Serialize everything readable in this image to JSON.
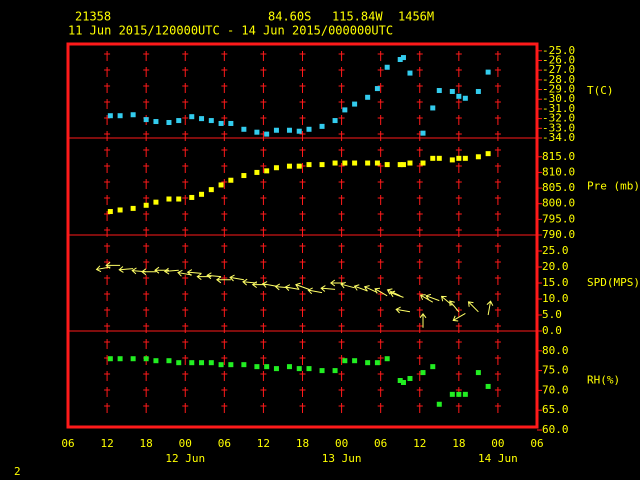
{
  "header": {
    "station": "21358",
    "latitude": "84.60S",
    "longitude": "115.84W",
    "elevation": "1456M",
    "period": "11 Jun 2015/120000UTC - 14 Jun 2015/000000UTC",
    "page": "2"
  },
  "chart_data": [
    {
      "type": "scatter",
      "ylabel": "T(C)",
      "color": "#33ccee",
      "x": [
        "2015-06-11T12:30Z",
        "2015-06-11T14:00Z",
        "2015-06-11T16:00Z",
        "2015-06-11T18:00Z",
        "2015-06-11T19:30Z",
        "2015-06-11T21:30Z",
        "2015-06-11T23:00Z",
        "2015-06-12T01:00Z",
        "2015-06-12T02:30Z",
        "2015-06-12T04:00Z",
        "2015-06-12T05:30Z",
        "2015-06-12T07:00Z",
        "2015-06-12T09:00Z",
        "2015-06-12T11:00Z",
        "2015-06-12T12:30Z",
        "2015-06-12T14:00Z",
        "2015-06-12T16:00Z",
        "2015-06-12T17:30Z",
        "2015-06-12T19:00Z",
        "2015-06-12T21:00Z",
        "2015-06-12T23:00Z",
        "2015-06-13T00:30Z",
        "2015-06-13T02:00Z",
        "2015-06-13T04:00Z",
        "2015-06-13T05:30Z",
        "2015-06-13T07:00Z",
        "2015-06-13T09:00Z",
        "2015-06-13T09:30Z",
        "2015-06-13T10:30Z",
        "2015-06-13T12:30Z",
        "2015-06-13T14:00Z",
        "2015-06-13T15:00Z",
        "2015-06-13T17:00Z",
        "2015-06-13T18:00Z",
        "2015-06-13T19:00Z",
        "2015-06-13T21:00Z",
        "2015-06-13T22:30Z"
      ],
      "values": [
        -31.7,
        -31.7,
        -31.6,
        -32.1,
        -32.3,
        -32.4,
        -32.2,
        -31.8,
        -32.0,
        -32.2,
        -32.5,
        -32.5,
        -33.1,
        -33.4,
        -33.6,
        -33.2,
        -33.2,
        -33.3,
        -33.1,
        -32.8,
        -32.2,
        -31.1,
        -30.5,
        -29.8,
        -28.9,
        -26.7,
        -25.9,
        -25.7,
        -27.3,
        -33.5,
        -30.9,
        -29.1,
        -29.2,
        -29.7,
        -29.9,
        -29.2,
        -27.2
      ],
      "ylim": [
        -34,
        -24.3
      ],
      "yticks": [
        {
          "value": -25,
          "label": "-25.0"
        },
        {
          "value": -26,
          "label": "-26.0"
        },
        {
          "value": -27,
          "label": "-27.0"
        },
        {
          "value": -28,
          "label": "-28.0"
        },
        {
          "value": -29,
          "label": "-29.0"
        },
        {
          "value": -30,
          "label": "-30.0"
        },
        {
          "value": -31,
          "label": "-31.0"
        },
        {
          "value": -32,
          "label": "-32.0"
        },
        {
          "value": -33,
          "label": "-33.0"
        },
        {
          "value": -34,
          "label": "-34.0"
        }
      ]
    },
    {
      "type": "scatter",
      "ylabel": "Pre (mb)",
      "color": "#ffff00",
      "x": [
        "2015-06-11T12:30Z",
        "2015-06-11T14:00Z",
        "2015-06-11T16:00Z",
        "2015-06-11T18:00Z",
        "2015-06-11T19:30Z",
        "2015-06-11T21:30Z",
        "2015-06-11T23:00Z",
        "2015-06-12T01:00Z",
        "2015-06-12T02:30Z",
        "2015-06-12T04:00Z",
        "2015-06-12T05:30Z",
        "2015-06-12T07:00Z",
        "2015-06-12T09:00Z",
        "2015-06-12T11:00Z",
        "2015-06-12T12:30Z",
        "2015-06-12T14:00Z",
        "2015-06-12T16:00Z",
        "2015-06-12T17:30Z",
        "2015-06-12T19:00Z",
        "2015-06-12T21:00Z",
        "2015-06-12T23:00Z",
        "2015-06-13T00:30Z",
        "2015-06-13T02:00Z",
        "2015-06-13T04:00Z",
        "2015-06-13T05:30Z",
        "2015-06-13T07:00Z",
        "2015-06-13T09:00Z",
        "2015-06-13T09:30Z",
        "2015-06-13T10:30Z",
        "2015-06-13T12:30Z",
        "2015-06-13T14:00Z",
        "2015-06-13T15:00Z",
        "2015-06-13T17:00Z",
        "2015-06-13T18:00Z",
        "2015-06-13T19:00Z",
        "2015-06-13T21:00Z",
        "2015-06-13T22:30Z"
      ],
      "values": [
        797.5,
        798,
        798.5,
        799.5,
        800.5,
        801.5,
        801.5,
        802,
        803,
        804.5,
        806,
        807.5,
        809,
        810,
        810.5,
        811.5,
        812,
        812,
        812.5,
        812.5,
        813,
        813,
        813,
        813,
        813,
        812.5,
        812.5,
        812.5,
        813,
        813,
        814.5,
        814.5,
        814,
        814.5,
        814.5,
        815,
        816
      ],
      "ylim": [
        790,
        821
      ],
      "yticks": [
        {
          "value": 815,
          "label": "815.0"
        },
        {
          "value": 810,
          "label": "810.0"
        },
        {
          "value": 805,
          "label": "805.0"
        },
        {
          "value": 800,
          "label": "800.0"
        },
        {
          "value": 795,
          "label": "795.0"
        },
        {
          "value": 790,
          "label": "790.0"
        }
      ]
    },
    {
      "type": "wind",
      "ylabel": "SPD(MPS)",
      "color": "#ffff66",
      "x": [
        "2015-06-11T12:30Z",
        "2015-06-11T14:00Z",
        "2015-06-11T16:00Z",
        "2015-06-11T18:00Z",
        "2015-06-11T19:30Z",
        "2015-06-11T21:30Z",
        "2015-06-11T23:00Z",
        "2015-06-12T01:00Z",
        "2015-06-12T02:30Z",
        "2015-06-12T04:00Z",
        "2015-06-12T05:30Z",
        "2015-06-12T07:00Z",
        "2015-06-12T09:00Z",
        "2015-06-12T11:00Z",
        "2015-06-12T12:30Z",
        "2015-06-12T14:00Z",
        "2015-06-12T16:00Z",
        "2015-06-12T17:30Z",
        "2015-06-12T19:00Z",
        "2015-06-12T21:00Z",
        "2015-06-12T23:00Z",
        "2015-06-13T00:30Z",
        "2015-06-13T02:00Z",
        "2015-06-13T04:00Z",
        "2015-06-13T05:30Z",
        "2015-06-13T07:00Z",
        "2015-06-13T09:00Z",
        "2015-06-13T09:30Z",
        "2015-06-13T10:30Z",
        "2015-06-13T12:30Z",
        "2015-06-13T14:00Z",
        "2015-06-13T15:00Z",
        "2015-06-13T17:00Z",
        "2015-06-13T18:00Z",
        "2015-06-13T19:00Z",
        "2015-06-13T21:00Z",
        "2015-06-13T22:30Z"
      ],
      "values": [
        20,
        20.5,
        19.5,
        18.5,
        18.5,
        19,
        19,
        17.5,
        18,
        17,
        17,
        16,
        16,
        15,
        14.5,
        14,
        13.5,
        13,
        13,
        12,
        13,
        15,
        13.5,
        12.5,
        12,
        11,
        11,
        10.5,
        6,
        1,
        9,
        9.5,
        8,
        6,
        5.5,
        6,
        5
      ],
      "directions": [
        80,
        90,
        85,
        95,
        90,
        90,
        85,
        100,
        95,
        90,
        95,
        90,
        100,
        95,
        90,
        100,
        95,
        100,
        110,
        100,
        95,
        90,
        105,
        110,
        115,
        120,
        115,
        110,
        100,
        180,
        120,
        110,
        130,
        140,
        60,
        135,
        190
      ],
      "ylim": [
        0,
        30
      ],
      "yticks": [
        {
          "value": 25,
          "label": "25.0"
        },
        {
          "value": 20,
          "label": "20.0"
        },
        {
          "value": 15,
          "label": "15.0"
        },
        {
          "value": 10,
          "label": "10.0"
        },
        {
          "value": 5,
          "label": "5.0"
        },
        {
          "value": 0,
          "label": "0.0"
        }
      ]
    },
    {
      "type": "scatter",
      "ylabel": "RH(%)",
      "color": "#22ee22",
      "x": [
        "2015-06-11T12:30Z",
        "2015-06-11T14:00Z",
        "2015-06-11T16:00Z",
        "2015-06-11T18:00Z",
        "2015-06-11T19:30Z",
        "2015-06-11T21:30Z",
        "2015-06-11T23:00Z",
        "2015-06-12T01:00Z",
        "2015-06-12T02:30Z",
        "2015-06-12T04:00Z",
        "2015-06-12T05:30Z",
        "2015-06-12T07:00Z",
        "2015-06-12T09:00Z",
        "2015-06-12T11:00Z",
        "2015-06-12T12:30Z",
        "2015-06-12T14:00Z",
        "2015-06-12T16:00Z",
        "2015-06-12T17:30Z",
        "2015-06-12T19:00Z",
        "2015-06-12T21:00Z",
        "2015-06-12T23:00Z",
        "2015-06-13T00:30Z",
        "2015-06-13T02:00Z",
        "2015-06-13T04:00Z",
        "2015-06-13T05:30Z",
        "2015-06-13T07:00Z",
        "2015-06-13T09:00Z",
        "2015-06-13T09:30Z",
        "2015-06-13T10:30Z",
        "2015-06-13T12:30Z",
        "2015-06-13T14:00Z",
        "2015-06-13T15:00Z",
        "2015-06-13T17:00Z",
        "2015-06-13T18:00Z",
        "2015-06-13T19:00Z",
        "2015-06-13T21:00Z",
        "2015-06-13T22:30Z"
      ],
      "values": [
        78,
        78,
        78,
        78,
        77.5,
        77.5,
        77,
        77,
        77,
        77,
        76.5,
        76.5,
        76.5,
        76,
        76,
        75.5,
        76,
        75.5,
        75.5,
        75,
        75,
        77.5,
        77.5,
        77,
        77,
        78,
        72.5,
        72,
        73,
        74.5,
        76,
        66.5,
        69,
        69,
        69,
        74.5,
        71
      ],
      "ylim": [
        60,
        85
      ],
      "yticks": [
        {
          "value": 80,
          "label": "80.0"
        },
        {
          "value": 75,
          "label": "75.0"
        },
        {
          "value": 70,
          "label": "70.0"
        },
        {
          "value": 65,
          "label": "65.0"
        },
        {
          "value": 60,
          "label": "60.0"
        }
      ],
      "xlim": [
        "2015-06-11T06:00Z",
        "2015-06-14T06:00Z"
      ],
      "xticks": [
        {
          "value": "2015-06-11T06:00Z",
          "label": "06"
        },
        {
          "value": "2015-06-11T12:00Z",
          "label": "12"
        },
        {
          "value": "2015-06-11T18:00Z",
          "label": "18"
        },
        {
          "value": "2015-06-12T00:00Z",
          "label": "00"
        },
        {
          "value": "2015-06-12T06:00Z",
          "label": "06"
        },
        {
          "value": "2015-06-12T12:00Z",
          "label": "12"
        },
        {
          "value": "2015-06-12T18:00Z",
          "label": "18"
        },
        {
          "value": "2015-06-13T00:00Z",
          "label": "00"
        },
        {
          "value": "2015-06-13T06:00Z",
          "label": "06"
        },
        {
          "value": "2015-06-13T12:00Z",
          "label": "12"
        },
        {
          "value": "2015-06-13T18:00Z",
          "label": "18"
        },
        {
          "value": "2015-06-14T00:00Z",
          "label": "00"
        },
        {
          "value": "2015-06-14T06:00Z",
          "label": "06"
        }
      ],
      "date_labels": [
        {
          "value": "2015-06-12T00:00Z",
          "label": "12 Jun"
        },
        {
          "value": "2015-06-13T00:00Z",
          "label": "13 Jun"
        },
        {
          "value": "2015-06-14T00:00Z",
          "label": "14 Jun"
        }
      ]
    }
  ]
}
